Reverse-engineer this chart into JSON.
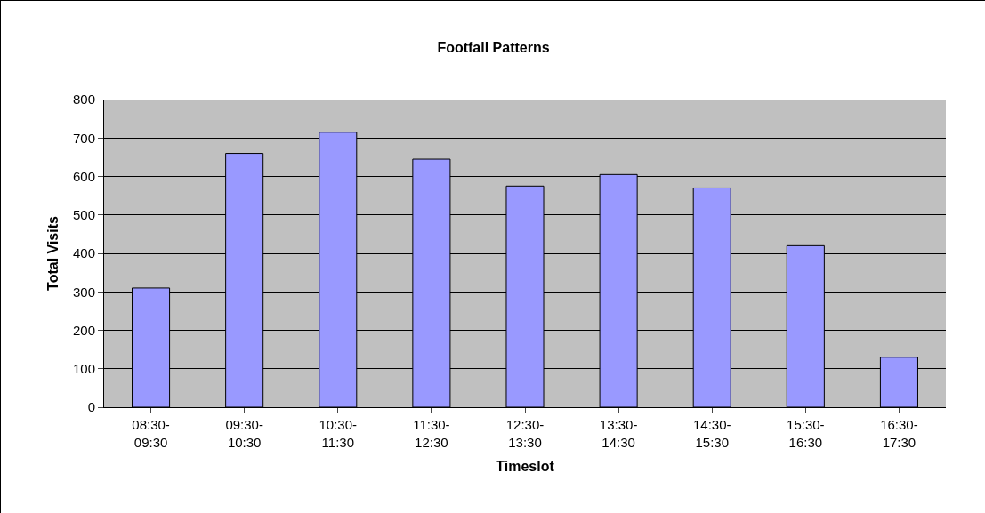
{
  "chart_data": {
    "type": "bar",
    "title": "Footfall Patterns",
    "xlabel": "Timeslot",
    "ylabel": "Total Visits",
    "categories": [
      "08:30-09:30",
      "09:30-10:30",
      "10:30-11:30",
      "11:30-12:30",
      "12:30-13:30",
      "13:30-14:30",
      "14:30-15:30",
      "15:30-16:30",
      "16:30-17:30"
    ],
    "values": [
      310,
      660,
      715,
      645,
      575,
      605,
      570,
      420,
      130
    ],
    "color": "#9999ff",
    "ylim": [
      0,
      800
    ],
    "yticks": [
      0,
      100,
      200,
      300,
      400,
      500,
      600,
      700,
      800
    ],
    "grid": "y",
    "legend": false
  }
}
